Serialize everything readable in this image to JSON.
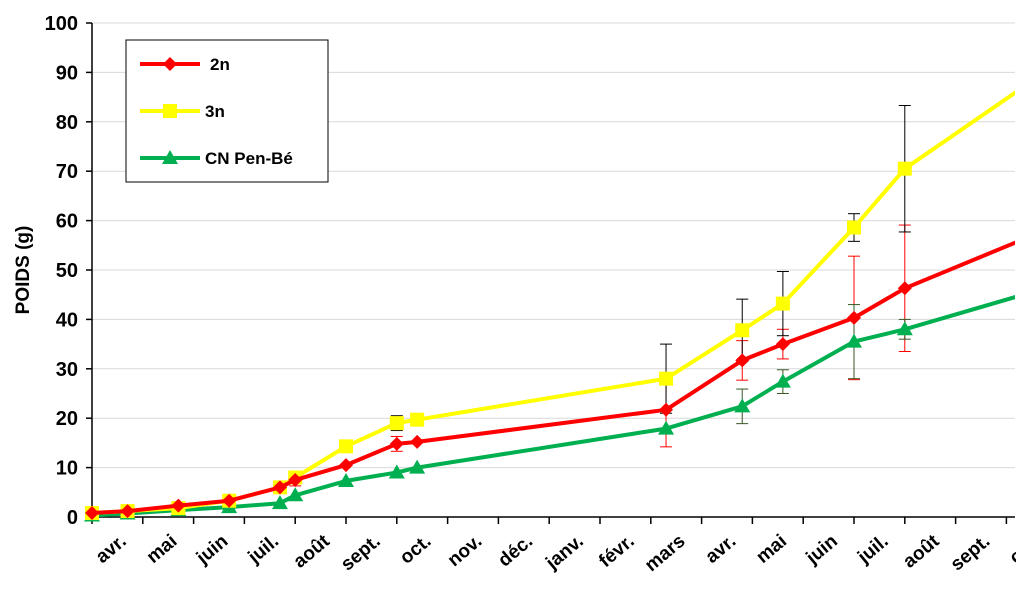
{
  "chart_data": {
    "type": "line",
    "ylabel": "POIDS (g)",
    "xlabel": "",
    "ylim": [
      0,
      100
    ],
    "y_ticks": [
      "0",
      "10",
      "20",
      "30",
      "40",
      "50",
      "60",
      "70",
      "80",
      "90",
      "100"
    ],
    "month_labels": [
      "avr.",
      "mai",
      "juin",
      "juil.",
      "août",
      "sept.",
      "oct.",
      "nov.",
      "déc.",
      "janv.",
      "févr.",
      "mars",
      "avr.",
      "mai",
      "juin",
      "juil.",
      "août",
      "sept.",
      "oct."
    ],
    "grid": "horizontal",
    "legend_position": "top-left",
    "x_unit": "month index (0 = avr., year 1)",
    "series": [
      {
        "name": "2n",
        "color": "#ff0000",
        "marker": "diamond",
        "x": [
          0,
          0.7,
          1.7,
          2.7,
          3.7,
          4.0,
          5.0,
          6.0,
          6.4,
          11.3,
          12.8,
          13.6,
          15.0,
          16.0,
          18.4
        ],
        "values": [
          0.8,
          1.2,
          2.3,
          3.3,
          6.0,
          7.5,
          10.5,
          14.8,
          15.2,
          21.7,
          31.7,
          35.0,
          40.3,
          46.3,
          56.5
        ],
        "err": [
          0,
          0,
          0,
          0,
          0,
          1.2,
          0,
          1.5,
          0,
          7.5,
          4.0,
          3.0,
          12.5,
          12.8,
          0
        ]
      },
      {
        "name": "3n",
        "color": "#ffff00",
        "marker": "square",
        "x": [
          0,
          0.7,
          1.7,
          2.7,
          3.7,
          4.0,
          5.0,
          6.0,
          6.4,
          11.3,
          12.8,
          13.6,
          15.0,
          16.0,
          18.4
        ],
        "values": [
          0.8,
          1.2,
          1.8,
          3.3,
          6.0,
          8.0,
          14.3,
          19.0,
          19.7,
          28.0,
          37.8,
          43.2,
          58.6,
          70.5,
          87.5
        ],
        "err": [
          0,
          0,
          0,
          0,
          0,
          1.0,
          0,
          1.5,
          0,
          7.0,
          6.3,
          6.5,
          2.8,
          12.8,
          0
        ]
      },
      {
        "name": "CN Pen-Bé",
        "color": "#00b050",
        "marker": "triangle",
        "x": [
          0,
          0.7,
          1.7,
          2.7,
          3.7,
          4.0,
          5.0,
          6.0,
          6.4,
          11.3,
          12.8,
          13.6,
          15.0,
          16.0,
          18.4
        ],
        "values": [
          0.3,
          0.7,
          1.4,
          2.0,
          2.8,
          4.4,
          7.3,
          9.0,
          10.0,
          17.9,
          22.4,
          27.4,
          35.5,
          38.0,
          45.2
        ],
        "err": [
          0,
          0,
          0,
          0,
          0,
          0,
          0,
          0,
          0,
          0,
          3.5,
          2.4,
          7.5,
          2.0,
          0
        ]
      }
    ]
  }
}
